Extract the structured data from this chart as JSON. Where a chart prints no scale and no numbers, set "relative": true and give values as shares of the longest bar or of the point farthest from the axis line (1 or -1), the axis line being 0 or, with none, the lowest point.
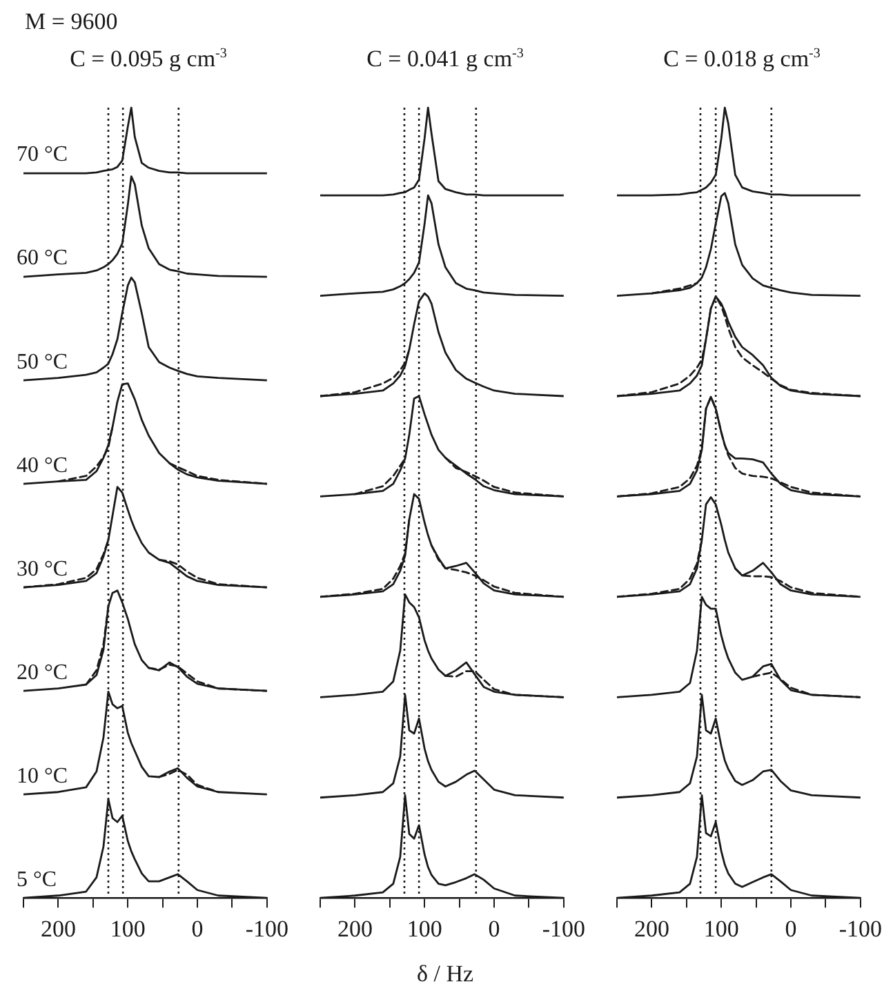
{
  "chart_data": [
    {
      "type": "line",
      "title": "C = 0.095 g cm$^{-3}$",
      "annotations": [
        "M = 9600"
      ],
      "relative": true,
      "x": [
        250,
        200,
        160,
        145,
        135,
        128,
        122,
        115,
        108,
        100,
        95,
        90,
        80,
        70,
        55,
        40,
        28,
        15,
        0,
        -30,
        -100
      ],
      "xlim": [
        250,
        -100
      ],
      "xticks": [
        {
          "value": 250,
          "label": null
        },
        200,
        {
          "value": 150,
          "label": null
        },
        100,
        {
          "value": 50,
          "label": null
        },
        0,
        {
          "value": -50,
          "label": null
        },
        -100
      ],
      "ref_lines": [
        {
          "axis": "x",
          "value": 128,
          "line_style": "dotted",
          "color": "#1a1a1a"
        },
        {
          "axis": "x",
          "value": 107,
          "line_style": "dotted",
          "color": "#1a1a1a"
        },
        {
          "axis": "x",
          "value": 27,
          "line_style": "dotted",
          "color": "#1a1a1a"
        }
      ],
      "series": [
        {
          "name": "70 °C",
          "color": "#1a1a1a",
          "values": [
            0.917,
            0.917,
            0.917,
            0.918,
            0.92,
            0.921,
            0.922,
            0.925,
            0.933,
            0.976,
            1,
            0.963,
            0.93,
            0.924,
            0.92,
            0.918,
            0.918,
            0.917,
            0.917,
            0.917,
            0.917
          ]
        },
        {
          "name": "60 °C",
          "color": "#1a1a1a",
          "values": [
            0.786,
            0.789,
            0.791,
            0.794,
            0.798,
            0.802,
            0.807,
            0.815,
            0.828,
            0.877,
            0.913,
            0.903,
            0.851,
            0.822,
            0.802,
            0.795,
            0.793,
            0.79,
            0.789,
            0.787,
            0.786
          ]
        },
        {
          "name": "50 °C",
          "color": "#1a1a1a",
          "values": [
            0.655,
            0.658,
            0.662,
            0.665,
            0.671,
            0.676,
            0.688,
            0.707,
            0.74,
            0.775,
            0.785,
            0.779,
            0.74,
            0.697,
            0.678,
            0.671,
            0.667,
            0.663,
            0.66,
            0.658,
            0.655
          ]
        },
        {
          "name": "40 °C",
          "color": "#1a1a1a",
          "values": [
            0.524,
            0.527,
            0.529,
            0.54,
            0.557,
            0.573,
            0.596,
            0.628,
            0.65,
            0.651,
            0.641,
            0.631,
            0.605,
            0.585,
            0.563,
            0.55,
            0.542,
            0.536,
            0.532,
            0.528,
            0.524
          ]
        },
        {
          "name": "30 °C",
          "color": "#1a1a1a",
          "values": [
            0.393,
            0.396,
            0.401,
            0.411,
            0.432,
            0.453,
            0.484,
            0.52,
            0.513,
            0.491,
            0.478,
            0.467,
            0.449,
            0.437,
            0.428,
            0.424,
            0.416,
            0.407,
            0.401,
            0.396,
            0.393
          ]
        },
        {
          "name": "20 °C",
          "color": "#1a1a1a",
          "values": [
            0.262,
            0.265,
            0.27,
            0.282,
            0.314,
            0.369,
            0.386,
            0.389,
            0.374,
            0.353,
            0.337,
            0.321,
            0.301,
            0.291,
            0.288,
            0.298,
            0.292,
            0.28,
            0.271,
            0.265,
            0.262
          ]
        },
        {
          "name": "10 °C",
          "color": "#1a1a1a",
          "values": [
            0.131,
            0.134,
            0.14,
            0.16,
            0.203,
            0.261,
            0.245,
            0.24,
            0.243,
            0.209,
            0.196,
            0.186,
            0.166,
            0.154,
            0.153,
            0.16,
            0.164,
            0.152,
            0.141,
            0.134,
            0.131
          ]
        },
        {
          "name": "5 °C",
          "color": "#1a1a1a",
          "values": [
            0,
            0.003,
            0.008,
            0.026,
            0.065,
            0.125,
            0.101,
            0.096,
            0.104,
            0.072,
            0.059,
            0.049,
            0.031,
            0.021,
            0.021,
            0.026,
            0.03,
            0.021,
            0.01,
            0.003,
            0
          ]
        },
        {
          "color": "#1a1a1a",
          "line_style": "dashed",
          "values": [
            null,
            0.527,
            0.534,
            0.546,
            0.558,
            0.57,
            0.596,
            null,
            null,
            null,
            null,
            null,
            null,
            null,
            null,
            0.55,
            0.545,
            0.54,
            0.534,
            0.529,
            0.524
          ]
        },
        {
          "color": "#1a1a1a",
          "line_style": "dashed",
          "values": [
            0.393,
            0.397,
            0.405,
            0.416,
            0.435,
            0.453,
            null,
            null,
            null,
            null,
            null,
            null,
            null,
            null,
            0.428,
            0.426,
            0.422,
            0.413,
            0.405,
            0.397,
            0.393
          ]
        },
        {
          "color": "#1a1a1a",
          "line_style": "dashed",
          "values": [
            null,
            null,
            0.27,
            0.288,
            0.321,
            0.369,
            null,
            null,
            null,
            null,
            null,
            null,
            null,
            0.291,
            0.289,
            0.295,
            0.293,
            0.284,
            0.274,
            0.265,
            0.262
          ]
        },
        {
          "color": "#1a1a1a",
          "line_style": "dashed",
          "values": [
            null,
            null,
            null,
            null,
            null,
            null,
            null,
            null,
            null,
            null,
            null,
            null,
            null,
            null,
            0.153,
            0.157,
            0.162,
            0.156,
            0.143,
            0.134,
            null
          ]
        }
      ]
    },
    {
      "type": "line",
      "title": "C = 0.041 g cm$^{-3}$",
      "xlabel": "δ / Hz",
      "relative": true,
      "x": [
        250,
        200,
        160,
        145,
        135,
        128,
        122,
        115,
        108,
        100,
        95,
        90,
        80,
        70,
        55,
        40,
        28,
        15,
        0,
        -30,
        -100
      ],
      "xlim": [
        250,
        -100
      ],
      "xticks": [
        {
          "value": 250,
          "label": null
        },
        200,
        {
          "value": 150,
          "label": null
        },
        100,
        {
          "value": 50,
          "label": null
        },
        0,
        {
          "value": -50,
          "label": null
        },
        -100
      ],
      "ref_lines": [
        {
          "axis": "x",
          "value": 129,
          "line_style": "dotted",
          "color": "#1a1a1a"
        },
        {
          "axis": "x",
          "value": 108,
          "line_style": "dotted",
          "color": "#1a1a1a"
        },
        {
          "axis": "x",
          "value": 26,
          "line_style": "dotted",
          "color": "#1a1a1a"
        }
      ],
      "series": [
        {
          "color": "#1a1a1a",
          "values": [
            0.889,
            0.889,
            0.889,
            0.89,
            0.892,
            0.893,
            0.896,
            0.899,
            0.909,
            0.961,
            1,
            0.967,
            0.907,
            0.897,
            0.893,
            0.89,
            0.89,
            0.889,
            0.889,
            0.889,
            0.889
          ]
        },
        {
          "color": "#1a1a1a",
          "values": [
            0.762,
            0.765,
            0.767,
            0.77,
            0.774,
            0.778,
            0.783,
            0.791,
            0.804,
            0.853,
            0.889,
            0.879,
            0.827,
            0.798,
            0.778,
            0.771,
            0.769,
            0.766,
            0.765,
            0.763,
            0.762
          ]
        },
        {
          "color": "#1a1a1a",
          "values": [
            0.635,
            0.638,
            0.642,
            0.651,
            0.661,
            0.673,
            0.694,
            0.726,
            0.755,
            0.765,
            0.761,
            0.752,
            0.716,
            0.69,
            0.668,
            0.657,
            0.652,
            0.647,
            0.642,
            0.638,
            0.635
          ]
        },
        {
          "color": "#1a1a1a",
          "values": [
            0.508,
            0.511,
            0.515,
            0.524,
            0.541,
            0.556,
            0.586,
            0.632,
            0.635,
            0.612,
            0.599,
            0.586,
            0.567,
            0.557,
            0.547,
            0.537,
            0.53,
            0.521,
            0.516,
            0.511,
            0.508
          ]
        },
        {
          "color": "#1a1a1a",
          "values": [
            0.381,
            0.384,
            0.388,
            0.397,
            0.414,
            0.433,
            0.479,
            0.511,
            0.505,
            0.475,
            0.459,
            0.446,
            0.43,
            0.417,
            0.42,
            0.424,
            0.412,
            0.398,
            0.389,
            0.384,
            0.381
          ]
        },
        {
          "color": "#1a1a1a",
          "values": [
            0.254,
            0.257,
            0.261,
            0.274,
            0.313,
            0.384,
            0.374,
            0.368,
            0.355,
            0.326,
            0.313,
            0.303,
            0.289,
            0.281,
            0.288,
            0.298,
            0.283,
            0.267,
            0.261,
            0.257,
            0.254
          ]
        },
        {
          "color": "#1a1a1a",
          "values": [
            0.127,
            0.13,
            0.134,
            0.145,
            0.179,
            0.257,
            0.212,
            0.208,
            0.227,
            0.189,
            0.173,
            0.162,
            0.147,
            0.141,
            0.147,
            0.156,
            0.161,
            0.15,
            0.137,
            0.13,
            0.127
          ]
        },
        {
          "color": "#1a1a1a",
          "values": [
            0,
            0.003,
            0.007,
            0.018,
            0.052,
            0.13,
            0.081,
            0.075,
            0.092,
            0.055,
            0.039,
            0.029,
            0.018,
            0.016,
            0.02,
            0.025,
            0.03,
            0.023,
            0.012,
            0.003,
            0
          ]
        },
        {
          "color": "#1a1a1a",
          "line_style": "dashed",
          "values": [
            0.635,
            0.64,
            0.651,
            0.658,
            0.668,
            0.677,
            0.694,
            null,
            null,
            null,
            null,
            null,
            null,
            null,
            null,
            null,
            null,
            null,
            null,
            null,
            null
          ]
        },
        {
          "color": "#1a1a1a",
          "line_style": "dashed",
          "values": [
            null,
            0.511,
            0.521,
            0.534,
            0.547,
            0.556,
            null,
            null,
            null,
            null,
            null,
            null,
            null,
            0.557,
            0.544,
            0.539,
            0.534,
            0.528,
            0.52,
            0.513,
            0.508
          ]
        },
        {
          "color": "#1a1a1a",
          "line_style": "dashed",
          "values": [
            0.381,
            0.385,
            0.391,
            0.404,
            0.42,
            0.436,
            0.479,
            null,
            null,
            null,
            null,
            0.446,
            0.428,
            0.417,
            0.415,
            0.412,
            0.408,
            0.402,
            0.394,
            0.386,
            0.381
          ]
        },
        {
          "color": "#1a1a1a",
          "line_style": "dashed",
          "values": [
            null,
            null,
            null,
            null,
            null,
            null,
            null,
            null,
            null,
            null,
            null,
            null,
            null,
            0.281,
            0.28,
            0.287,
            0.287,
            0.276,
            0.264,
            0.257,
            0.254
          ]
        }
      ]
    },
    {
      "type": "line",
      "title": "C = 0.018 g cm$^{-3}$",
      "relative": true,
      "x": [
        250,
        200,
        160,
        145,
        135,
        128,
        122,
        115,
        108,
        100,
        95,
        90,
        80,
        70,
        55,
        40,
        28,
        15,
        0,
        -30,
        -100
      ],
      "xlim": [
        250,
        -100
      ],
      "xticks": [
        {
          "value": 250,
          "label": null
        },
        200,
        {
          "value": 150,
          "label": null
        },
        100,
        {
          "value": 50,
          "label": null
        },
        0,
        {
          "value": -50,
          "label": null
        },
        -100
      ],
      "ref_lines": [
        {
          "axis": "x",
          "value": 130,
          "line_style": "dotted",
          "color": "#1a1a1a"
        },
        {
          "axis": "x",
          "value": 108,
          "line_style": "dotted",
          "color": "#1a1a1a"
        },
        {
          "axis": "x",
          "value": 28,
          "line_style": "dotted",
          "color": "#1a1a1a"
        }
      ],
      "series": [
        {
          "color": "#1a1a1a",
          "values": [
            0.889,
            0.889,
            0.89,
            0.892,
            0.893,
            0.896,
            0.899,
            0.905,
            0.915,
            0.961,
            1,
            0.98,
            0.915,
            0.899,
            0.894,
            0.892,
            0.89,
            0.89,
            0.889,
            0.889,
            0.889
          ]
        },
        {
          "color": "#1a1a1a",
          "values": [
            0.762,
            0.765,
            0.769,
            0.772,
            0.778,
            0.785,
            0.798,
            0.821,
            0.853,
            0.888,
            0.892,
            0.879,
            0.827,
            0.801,
            0.784,
            0.775,
            0.772,
            0.769,
            0.766,
            0.763,
            0.762
          ]
        },
        {
          "color": "#1a1a1a",
          "values": [
            0.635,
            0.638,
            0.642,
            0.651,
            0.661,
            0.674,
            0.707,
            0.746,
            0.761,
            0.752,
            0.742,
            0.729,
            0.71,
            0.697,
            0.687,
            0.674,
            0.658,
            0.648,
            0.642,
            0.638,
            0.635
          ]
        },
        {
          "color": "#1a1a1a",
          "values": [
            0.508,
            0.511,
            0.515,
            0.524,
            0.541,
            0.567,
            0.619,
            0.634,
            0.619,
            0.589,
            0.573,
            0.563,
            0.556,
            0.556,
            0.555,
            0.551,
            0.537,
            0.524,
            0.516,
            0.511,
            0.508
          ]
        },
        {
          "color": "#1a1a1a",
          "values": [
            0.381,
            0.384,
            0.388,
            0.397,
            0.417,
            0.453,
            0.498,
            0.507,
            0.498,
            0.472,
            0.453,
            0.437,
            0.417,
            0.408,
            0.414,
            0.424,
            0.412,
            0.397,
            0.389,
            0.384,
            0.381
          ]
        },
        {
          "color": "#1a1a1a",
          "values": [
            0.254,
            0.257,
            0.261,
            0.272,
            0.313,
            0.381,
            0.371,
            0.366,
            0.366,
            0.332,
            0.316,
            0.303,
            0.285,
            0.276,
            0.28,
            0.293,
            0.296,
            0.276,
            0.263,
            0.257,
            0.254
          ]
        },
        {
          "color": "#1a1a1a",
          "values": [
            0.127,
            0.13,
            0.134,
            0.145,
            0.179,
            0.257,
            0.212,
            0.208,
            0.227,
            0.192,
            0.174,
            0.163,
            0.148,
            0.143,
            0.149,
            0.16,
            0.162,
            0.148,
            0.136,
            0.13,
            0.127
          ]
        },
        {
          "color": "#1a1a1a",
          "values": [
            0,
            0.003,
            0.007,
            0.018,
            0.052,
            0.13,
            0.082,
            0.078,
            0.096,
            0.059,
            0.042,
            0.031,
            0.018,
            0.014,
            0.02,
            0.026,
            0.03,
            0.021,
            0.01,
            0.003,
            0
          ]
        },
        {
          "color": "#1a1a1a",
          "line_style": "dashed",
          "values": [
            null,
            0.765,
            0.771,
            0.775,
            0.778,
            null,
            null,
            null,
            null,
            null,
            null,
            null,
            null,
            null,
            null,
            null,
            null,
            null,
            null,
            null,
            null
          ]
        },
        {
          "color": "#1a1a1a",
          "line_style": "dashed",
          "values": [
            0.635,
            0.64,
            0.651,
            0.661,
            0.671,
            0.681,
            0.707,
            0.746,
            0.761,
            0.749,
            0.736,
            0.721,
            0.697,
            0.684,
            0.674,
            0.665,
            0.657,
            0.649,
            0.643,
            0.639,
            0.635
          ]
        },
        {
          "color": "#1a1a1a",
          "line_style": "dashed",
          "values": [
            0.508,
            0.512,
            0.52,
            0.531,
            0.547,
            0.569,
            0.619,
            0.634,
            0.619,
            0.589,
            0.573,
            0.56,
            0.544,
            0.537,
            0.534,
            0.533,
            0.531,
            0.526,
            0.52,
            0.513,
            0.508
          ]
        },
        {
          "color": "#1a1a1a",
          "line_style": "dashed",
          "values": [
            0.381,
            0.385,
            0.391,
            0.404,
            0.423,
            0.453,
            null,
            null,
            null,
            null,
            null,
            null,
            0.417,
            0.408,
            0.407,
            0.407,
            0.406,
            0.401,
            0.393,
            0.386,
            0.381
          ]
        },
        {
          "color": "#1a1a1a",
          "line_style": "dashed",
          "values": [
            null,
            null,
            null,
            null,
            null,
            null,
            null,
            null,
            null,
            null,
            null,
            null,
            null,
            null,
            0.28,
            0.283,
            0.285,
            0.277,
            0.266,
            0.257,
            0.254
          ]
        }
      ]
    }
  ]
}
